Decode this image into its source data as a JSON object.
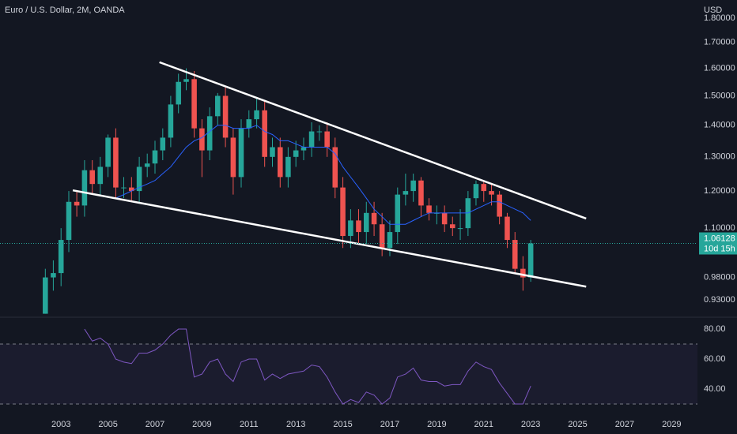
{
  "header": {
    "title": "Euro / U.S. Dollar, 2M, OANDA",
    "currency": "USD"
  },
  "chart_data": [
    {
      "type": "candlestick",
      "x": [
        2002.33,
        2002.67,
        2003.0,
        2003.33,
        2003.67,
        2004.0,
        2004.33,
        2004.67,
        2005.0,
        2005.33,
        2005.67,
        2006.0,
        2006.33,
        2006.67,
        2007.0,
        2007.33,
        2007.67,
        2008.0,
        2008.33,
        2008.67,
        2009.0,
        2009.33,
        2009.67,
        2010.0,
        2010.33,
        2010.67,
        2011.0,
        2011.33,
        2011.67,
        2012.0,
        2012.33,
        2012.67,
        2013.0,
        2013.33,
        2013.67,
        2014.0,
        2014.33,
        2014.67,
        2015.0,
        2015.33,
        2015.67,
        2016.0,
        2016.33,
        2016.67,
        2017.0,
        2017.33,
        2017.67,
        2018.0,
        2018.33,
        2018.67,
        2019.0,
        2019.33,
        2019.67,
        2020.0,
        2020.33,
        2020.67,
        2021.0,
        2021.33,
        2021.67,
        2022.0,
        2022.33,
        2022.67,
        2023.0
      ],
      "open": [
        0.9,
        0.98,
        0.99,
        1.07,
        1.17,
        1.16,
        1.26,
        1.22,
        1.27,
        1.36,
        1.21,
        1.21,
        1.2,
        1.27,
        1.28,
        1.32,
        1.36,
        1.47,
        1.55,
        1.56,
        1.39,
        1.32,
        1.43,
        1.5,
        1.36,
        1.24,
        1.39,
        1.42,
        1.45,
        1.3,
        1.33,
        1.24,
        1.3,
        1.32,
        1.33,
        1.38,
        1.38,
        1.33,
        1.21,
        1.08,
        1.12,
        1.09,
        1.14,
        1.11,
        1.05,
        1.09,
        1.19,
        1.2,
        1.23,
        1.16,
        1.14,
        1.14,
        1.11,
        1.1,
        1.1,
        1.18,
        1.22,
        1.2,
        1.19,
        1.13,
        1.07,
        1.0,
        0.98
      ],
      "high": [
        1.0,
        1.02,
        1.1,
        1.2,
        1.2,
        1.29,
        1.29,
        1.3,
        1.37,
        1.39,
        1.24,
        1.24,
        1.3,
        1.31,
        1.35,
        1.39,
        1.5,
        1.58,
        1.6,
        1.59,
        1.42,
        1.46,
        1.51,
        1.53,
        1.39,
        1.42,
        1.45,
        1.49,
        1.48,
        1.36,
        1.36,
        1.33,
        1.35,
        1.36,
        1.41,
        1.4,
        1.41,
        1.36,
        1.24,
        1.15,
        1.15,
        1.17,
        1.17,
        1.14,
        1.12,
        1.21,
        1.25,
        1.25,
        1.24,
        1.18,
        1.16,
        1.16,
        1.13,
        1.15,
        1.2,
        1.23,
        1.23,
        1.22,
        1.2,
        1.14,
        1.09,
        1.03,
        1.07
      ],
      "low": [
        0.9,
        0.95,
        0.96,
        1.04,
        1.13,
        1.13,
        1.19,
        1.19,
        1.24,
        1.18,
        1.18,
        1.17,
        1.17,
        1.24,
        1.25,
        1.29,
        1.33,
        1.44,
        1.52,
        1.36,
        1.24,
        1.29,
        1.4,
        1.33,
        1.19,
        1.21,
        1.36,
        1.39,
        1.27,
        1.27,
        1.21,
        1.21,
        1.27,
        1.29,
        1.3,
        1.35,
        1.3,
        1.18,
        1.05,
        1.05,
        1.06,
        1.06,
        1.08,
        1.03,
        1.03,
        1.06,
        1.16,
        1.17,
        1.13,
        1.12,
        1.11,
        1.09,
        1.08,
        1.07,
        1.08,
        1.16,
        1.17,
        1.16,
        1.11,
        1.05,
        0.99,
        0.95,
        0.97
      ],
      "close": [
        0.98,
        0.99,
        1.07,
        1.17,
        1.16,
        1.26,
        1.22,
        1.27,
        1.36,
        1.21,
        1.21,
        1.2,
        1.27,
        1.28,
        1.32,
        1.36,
        1.47,
        1.55,
        1.56,
        1.39,
        1.32,
        1.43,
        1.5,
        1.36,
        1.24,
        1.39,
        1.42,
        1.45,
        1.3,
        1.33,
        1.24,
        1.3,
        1.32,
        1.33,
        1.38,
        1.38,
        1.33,
        1.21,
        1.08,
        1.12,
        1.09,
        1.14,
        1.11,
        1.05,
        1.09,
        1.19,
        1.2,
        1.23,
        1.16,
        1.14,
        1.14,
        1.11,
        1.1,
        1.1,
        1.18,
        1.22,
        1.2,
        1.19,
        1.13,
        1.07,
        1.0,
        0.98,
        1.06128
      ],
      "up_color": "#26a69a",
      "down_color": "#ef5350",
      "ma": {
        "color": "#2962ff",
        "values": [
          null,
          null,
          null,
          null,
          null,
          null,
          null,
          null,
          null,
          1.18,
          1.19,
          1.2,
          1.21,
          1.22,
          1.23,
          1.25,
          1.27,
          1.3,
          1.33,
          1.35,
          1.36,
          1.38,
          1.4,
          1.4,
          1.39,
          1.39,
          1.39,
          1.4,
          1.38,
          1.37,
          1.35,
          1.35,
          1.34,
          1.33,
          1.33,
          1.33,
          1.33,
          1.31,
          1.27,
          1.24,
          1.21,
          1.18,
          1.15,
          1.13,
          1.11,
          1.11,
          1.11,
          1.12,
          1.13,
          1.14,
          1.14,
          1.14,
          1.14,
          1.14,
          1.14,
          1.15,
          1.16,
          1.17,
          1.17,
          1.16,
          1.15,
          1.14,
          1.12
        ]
      },
      "trendlines": [
        {
          "x": [
            2007.19,
            2025.36
          ],
          "y": [
            1.623,
            1.125
          ]
        },
        {
          "x": [
            2003.5,
            2025.36
          ],
          "y": [
            1.202,
            0.959
          ]
        }
      ],
      "trendline_color": "#ffffff",
      "last_price": 1.06128,
      "countdown": "10d 15h",
      "log_scale": true,
      "xlim": [
        2000.4,
        2030.1
      ],
      "xticks": [
        2003,
        2005,
        2007,
        2009,
        2011,
        2013,
        2015,
        2017,
        2019,
        2021,
        2023,
        2025,
        2027,
        2029
      ],
      "ylim": [
        0.896,
        1.878
      ],
      "yticks": [
        {
          "value": 1.8,
          "label": "1.80000"
        },
        {
          "value": 1.7,
          "label": "1.70000"
        },
        {
          "value": 1.6,
          "label": "1.60000"
        },
        {
          "value": 1.5,
          "label": "1.50000"
        },
        {
          "value": 1.4,
          "label": "1.40000"
        },
        {
          "value": 1.3,
          "label": "1.30000"
        },
        {
          "value": 1.2,
          "label": "1.20000"
        },
        {
          "value": 1.1,
          "label": "1.10000"
        },
        {
          "value": 0.98,
          "label": "0.98000"
        },
        {
          "value": 0.93,
          "label": "0.93000"
        }
      ]
    },
    {
      "type": "line",
      "series": [
        {
          "color": "#7e57c2",
          "values": [
            null,
            null,
            null,
            null,
            null,
            80,
            72,
            74,
            70,
            60,
            58,
            57,
            64,
            64,
            66,
            70,
            76,
            80,
            80,
            48,
            50,
            58,
            60,
            50,
            45,
            58,
            60,
            60,
            46,
            50,
            47,
            50,
            51,
            52,
            56,
            55,
            48,
            38,
            30,
            33,
            31,
            38,
            36,
            30,
            34,
            48,
            50,
            54,
            46,
            45,
            45,
            42,
            43,
            43,
            52,
            58,
            55,
            53,
            44,
            37,
            30,
            30,
            42
          ]
        }
      ],
      "band": [
        30,
        70
      ],
      "ylim": [
        25.8,
        87.4
      ],
      "yticks": [
        {
          "value": 80,
          "label": "80.00"
        },
        {
          "value": 60,
          "label": "60.00"
        },
        {
          "value": 40,
          "label": "40.00"
        }
      ]
    }
  ]
}
